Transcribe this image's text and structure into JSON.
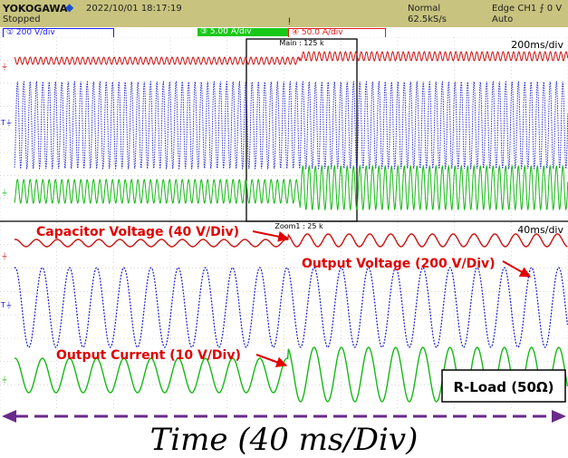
{
  "header": {
    "brand": "YOKOGAWA",
    "brand_mark": "diamond-icon",
    "datetime": "2022/10/01 18:17:19",
    "status": "Stopped",
    "mode": "Normal",
    "rate": "62.5kS/s",
    "trigger_source": "Edge CH1 ⨍ 0 V",
    "trigger_mode": "Auto"
  },
  "channels": [
    {
      "label": "① 200 V/div",
      "color": "#1a1aff"
    },
    {
      "label": "③ 5.00 A/div",
      "color": "#18c818"
    },
    {
      "label": "④ 50.0 A/div",
      "color": "#e01818"
    }
  ],
  "main_panel": {
    "record": "Main : 125 k",
    "timebase": "200ms/div"
  },
  "zoom_panel": {
    "record": "Zoom1 : 25 k",
    "timebase": "40ms/div"
  },
  "annotations": {
    "capacitor": "Capacitor Voltage (40 V/Div)",
    "voltage": "Output Voltage (200 V/Div)",
    "current": "Output Current (10 V/Div)",
    "load": "R-Load (50Ω)"
  },
  "footer": {
    "time_label": "Time (40 ms/Div)"
  },
  "colors": {
    "red": "#cc1111",
    "blue": "#1a1acc",
    "green": "#16b816",
    "arrow": "#6a2a8a",
    "header_bg": "#c8c37e"
  }
}
